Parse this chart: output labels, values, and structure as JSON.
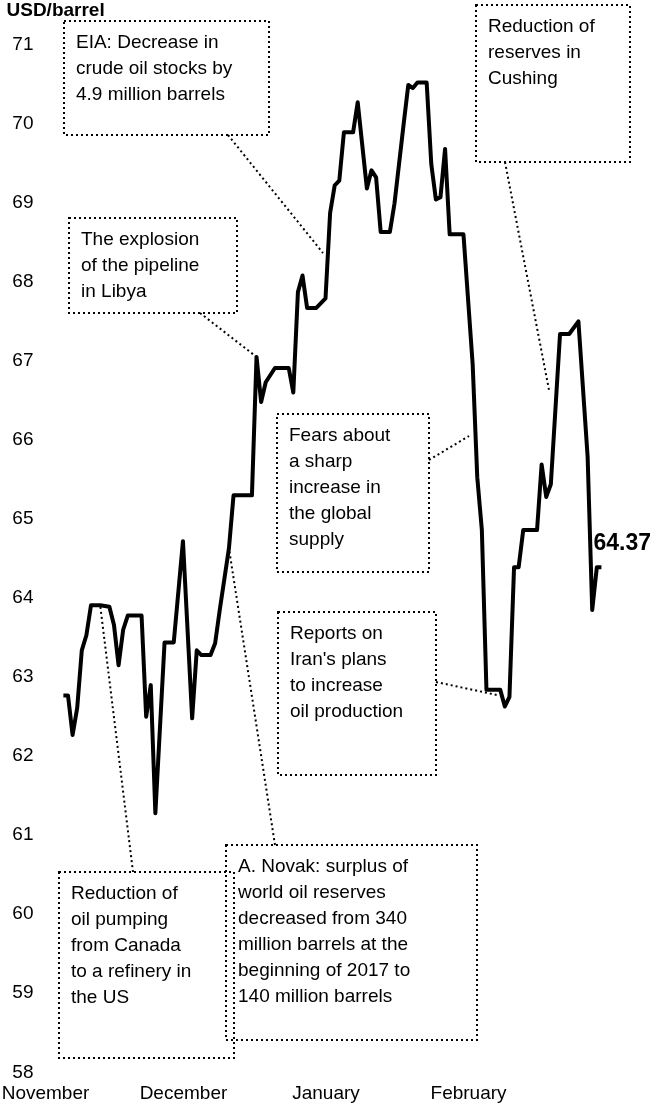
{
  "chart_data": {
    "type": "line",
    "ylabel": "USD/barrel",
    "color": "#000000",
    "x": [
      "2017-11-05",
      "2017-11-06",
      "2017-11-07",
      "2017-11-08",
      "2017-11-09",
      "2017-11-10",
      "2017-11-11",
      "2017-11-13",
      "2017-11-15",
      "2017-11-16",
      "2017-11-17",
      "2017-11-18",
      "2017-11-19",
      "2017-11-22",
      "2017-11-23",
      "2017-11-24",
      "2017-11-25",
      "2017-11-27",
      "2017-11-29",
      "2017-12-01",
      "2017-12-03",
      "2017-12-04",
      "2017-12-05",
      "2017-12-07",
      "2017-12-08",
      "2017-12-09",
      "2017-12-11",
      "2017-12-12",
      "2017-12-16",
      "2017-12-17",
      "2017-12-18",
      "2017-12-19",
      "2017-12-21",
      "2017-12-24",
      "2017-12-25",
      "2017-12-26",
      "2017-12-27",
      "2017-12-28",
      "2017-12-30",
      "2018-01-01",
      "2018-01-02",
      "2018-01-03",
      "2018-01-04",
      "2018-01-05",
      "2018-01-07",
      "2018-01-08",
      "2018-01-10",
      "2018-01-11",
      "2018-01-12",
      "2018-01-13",
      "2018-01-15",
      "2018-01-16",
      "2018-01-18",
      "2018-01-19",
      "2018-01-20",
      "2018-01-21",
      "2018-01-23",
      "2018-01-24",
      "2018-01-25",
      "2018-01-26",
      "2018-01-27",
      "2018-01-28",
      "2018-01-31",
      "2018-02-02",
      "2018-02-03",
      "2018-02-04",
      "2018-02-05",
      "2018-02-08",
      "2018-02-09",
      "2018-02-10",
      "2018-02-11",
      "2018-02-12",
      "2018-02-13",
      "2018-02-16",
      "2018-02-17",
      "2018-02-18",
      "2018-02-19",
      "2018-02-21",
      "2018-02-23",
      "2018-02-25",
      "2018-02-27",
      "2018-02-28",
      "2018-03-01",
      "2018-03-02"
    ],
    "values": [
      62.75,
      62.75,
      62.25,
      62.59,
      63.32,
      63.51,
      63.89,
      63.89,
      63.87,
      63.64,
      63.13,
      63.58,
      63.76,
      63.76,
      62.48,
      62.88,
      61.26,
      63.42,
      63.42,
      64.7,
      62.46,
      63.32,
      63.26,
      63.26,
      63.41,
      63.83,
      64.61,
      65.28,
      65.28,
      67.03,
      66.46,
      66.71,
      66.89,
      66.89,
      66.58,
      67.85,
      68.06,
      67.65,
      67.65,
      67.77,
      68.85,
      69.2,
      69.26,
      69.87,
      69.87,
      70.25,
      69.16,
      69.39,
      69.3,
      68.61,
      68.61,
      68.97,
      69.98,
      70.47,
      70.43,
      70.5,
      70.5,
      69.47,
      69.02,
      69.05,
      69.66,
      68.58,
      68.58,
      66.94,
      65.51,
      64.84,
      62.82,
      62.82,
      62.61,
      62.73,
      64.37,
      64.37,
      64.84,
      64.84,
      65.67,
      65.26,
      65.42,
      67.32,
      67.32,
      67.48,
      65.77,
      63.83,
      64.37,
      64.37
    ],
    "value_labels": [
      null,
      null,
      null,
      null,
      null,
      null,
      null,
      null,
      null,
      null,
      null,
      null,
      null,
      null,
      null,
      null,
      null,
      null,
      null,
      null,
      null,
      null,
      null,
      null,
      null,
      null,
      null,
      null,
      null,
      null,
      null,
      null,
      null,
      null,
      null,
      null,
      null,
      null,
      null,
      null,
      null,
      null,
      null,
      null,
      null,
      null,
      null,
      null,
      null,
      null,
      null,
      null,
      null,
      null,
      null,
      null,
      null,
      null,
      null,
      null,
      null,
      null,
      null,
      null,
      null,
      null,
      null,
      null,
      null,
      null,
      null,
      null,
      null,
      null,
      null,
      null,
      null,
      null,
      null,
      null,
      null,
      null,
      null,
      "64.37"
    ],
    "xlim": [
      "2017-11-01",
      "2018-03-13"
    ],
    "xticks": [
      {
        "value": "2017-11-01",
        "label": "November"
      },
      {
        "value": "2017-12-01",
        "label": "December"
      },
      {
        "value": "2018-01-01",
        "label": "January"
      },
      {
        "value": "2018-02-01",
        "label": "February"
      }
    ],
    "ylim": [
      58,
      71
    ],
    "yticks": [
      58,
      59,
      60,
      61,
      62,
      63,
      64,
      65,
      66,
      67,
      68,
      69,
      70,
      71
    ],
    "annotations": [
      "EIA: Decrease in\ncrude oil stocks by\n4.9 million barrels",
      {
        "text": "The explosion\nof the pipeline\nin Libya",
        "x": "2017-12-17",
        "y": 67.03
      },
      "Reduction of\nreserves in\nCushing",
      "Fears about\na sharp\nincrease in\nthe global\nsupply",
      "Reports on\nIran's plans\nto increase\noil production",
      {
        "text": "A. Novak: surplus of\nworld oil reserves\ndecreased from 340\nmillion barrels at the\nbeginning of 2017 to\n140 million barrels",
        "x": "2017-12-11",
        "y": 64.61
      },
      {
        "text": "Reduction of\noil pumping\nfrom Canada\nto a refinery in\nthe US",
        "x": "2017-11-13",
        "y": 63.89
      }
    ]
  }
}
